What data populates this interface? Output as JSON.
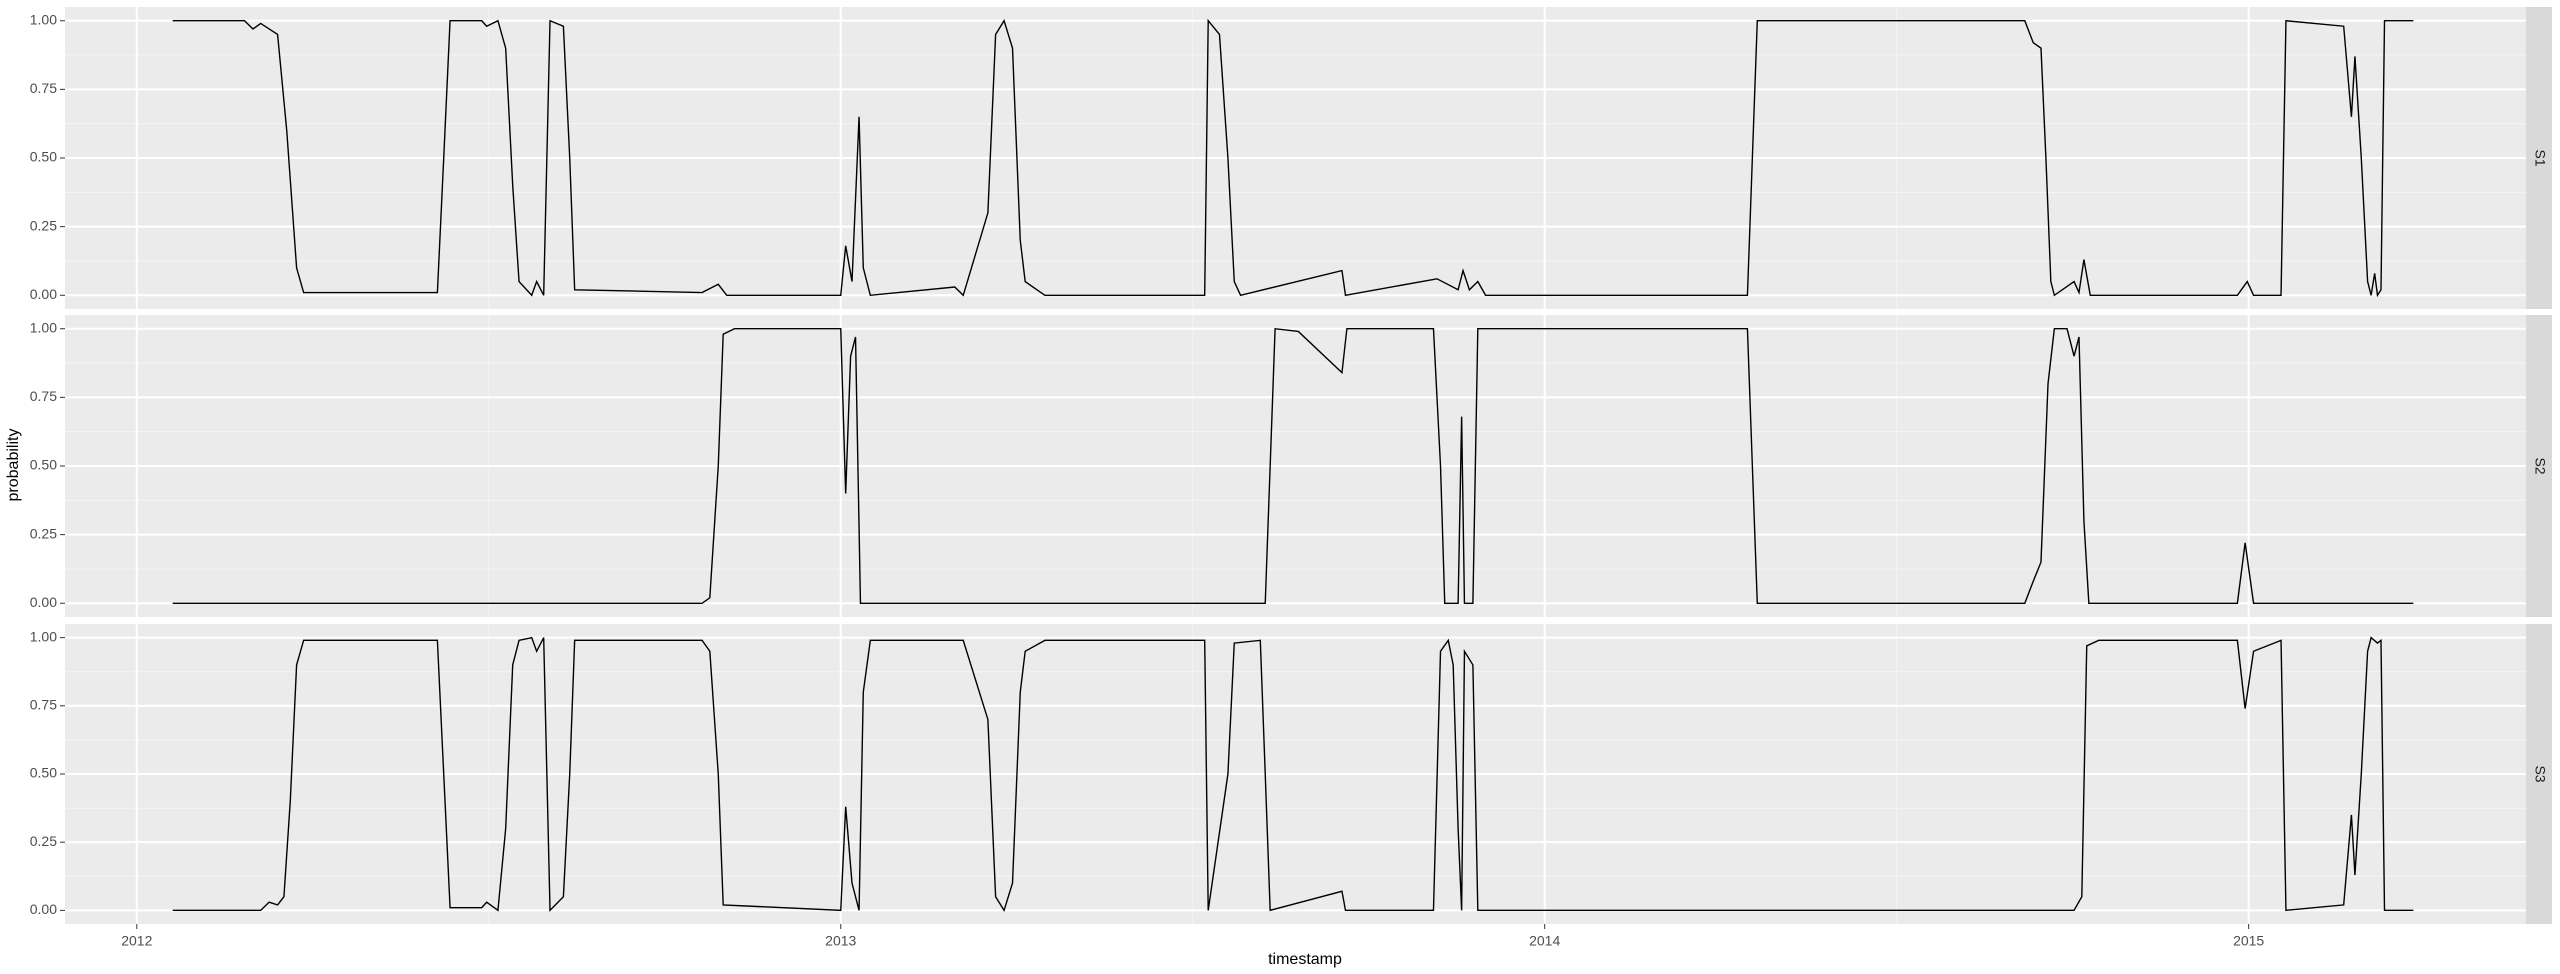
{
  "chart_data": {
    "type": "line",
    "xlabel": "timestamp",
    "ylabel": "probability",
    "xlim": [
      2011.898,
      2015.394
    ],
    "xticks": [
      2012,
      2013,
      2014,
      2015
    ],
    "ylim": [
      -0.05,
      1.05
    ],
    "yticks": [
      {
        "value": 0,
        "label": "0.00"
      },
      {
        "value": 0.25,
        "label": "0.25"
      },
      {
        "value": 0.5,
        "label": "0.50"
      },
      {
        "value": 0.75,
        "label": "0.75"
      },
      {
        "value": 1,
        "label": "1.00"
      }
    ],
    "grid": true,
    "series": [
      {
        "name": "S1",
        "color": "#000000",
        "x": [
          2012.051,
          2012.153,
          2012.165,
          2012.176,
          2012.188,
          2012.2,
          2012.213,
          2012.227,
          2012.237,
          2012.427,
          2012.436,
          2012.445,
          2012.49,
          2012.497,
          2012.513,
          2012.524,
          2012.534,
          2012.543,
          2012.561,
          2012.568,
          2012.578,
          2012.587,
          2012.606,
          2012.615,
          2012.622,
          2012.803,
          2012.826,
          2012.838,
          2013.0,
          2013.007,
          2013.016,
          2013.026,
          2013.032,
          2013.042,
          2013.162,
          2013.174,
          2013.209,
          2013.22,
          2013.232,
          2013.244,
          2013.255,
          2013.262,
          2013.29,
          2013.517,
          2013.522,
          2013.538,
          2013.55,
          2013.559,
          2013.568,
          2013.712,
          2013.717,
          2013.847,
          2013.877,
          2013.884,
          2013.893,
          2013.905,
          2013.916,
          2014.288,
          2014.295,
          2014.302,
          2014.682,
          2014.694,
          2014.705,
          2014.712,
          2014.719,
          2014.724,
          2014.752,
          2014.759,
          2014.766,
          2014.775,
          2014.984,
          2014.998,
          2015.007,
          2015.046,
          2015.053,
          2015.135,
          2015.146,
          2015.151,
          2015.16,
          2015.169,
          2015.174,
          2015.179,
          2015.183,
          2015.188,
          2015.193,
          2015.234
        ],
        "values": [
          1,
          1,
          0.97,
          0.99,
          0.97,
          0.95,
          0.6,
          0.1,
          0.01,
          0.01,
          0.5,
          1,
          1,
          0.98,
          1,
          0.9,
          0.4,
          0.05,
          0,
          0.05,
          0,
          1,
          0.98,
          0.5,
          0.02,
          0.01,
          0.04,
          0,
          0,
          0.18,
          0.05,
          0.65,
          0.1,
          0,
          0.03,
          0,
          0.3,
          0.95,
          1,
          0.9,
          0.2,
          0.05,
          0,
          0,
          1,
          0.95,
          0.5,
          0.05,
          0,
          0.09,
          0,
          0.06,
          0.02,
          0.09,
          0.02,
          0.05,
          0,
          0,
          0.5,
          1,
          1,
          0.92,
          0.9,
          0.5,
          0.05,
          0,
          0.05,
          0.01,
          0.13,
          0,
          0,
          0.05,
          0,
          0,
          1,
          0.98,
          0.65,
          0.87,
          0.5,
          0.05,
          0,
          0.08,
          0,
          0.02,
          1,
          1
        ]
      },
      {
        "name": "S2",
        "color": "#000000",
        "x": [
          2012.051,
          2012.803,
          2012.814,
          2012.826,
          2012.833,
          2012.849,
          2013.0,
          2013.007,
          2013.014,
          2013.021,
          2013.028,
          2013.603,
          2013.61,
          2013.617,
          2013.65,
          2013.712,
          2013.719,
          2013.842,
          2013.852,
          2013.858,
          2013.877,
          2013.882,
          2013.886,
          2013.898,
          2013.905,
          2014.288,
          2014.295,
          2014.302,
          2014.682,
          2014.694,
          2014.705,
          2014.715,
          2014.724,
          2014.742,
          2014.752,
          2014.759,
          2014.766,
          2014.773,
          2014.984,
          2014.995,
          2015.007,
          2015.234
        ],
        "values": [
          0,
          0,
          0.02,
          0.5,
          0.98,
          1,
          1,
          0.4,
          0.9,
          0.97,
          0,
          0,
          0.5,
          1,
          0.99,
          0.84,
          1,
          1,
          0.5,
          0,
          0,
          0.68,
          0,
          0,
          1,
          1,
          0.5,
          0,
          0,
          0.08,
          0.15,
          0.8,
          1,
          1,
          0.9,
          0.97,
          0.3,
          0,
          0,
          0.22,
          0,
          0
        ]
      },
      {
        "name": "S3",
        "color": "#000000",
        "x": [
          2012.051,
          2012.176,
          2012.188,
          2012.2,
          2012.209,
          2012.218,
          2012.227,
          2012.237,
          2012.427,
          2012.436,
          2012.445,
          2012.49,
          2012.497,
          2012.513,
          2012.524,
          2012.534,
          2012.543,
          2012.561,
          2012.568,
          2012.578,
          2012.587,
          2012.606,
          2012.615,
          2012.622,
          2012.803,
          2012.814,
          2012.826,
          2012.833,
          2013.0,
          2013.007,
          2013.016,
          2013.026,
          2013.032,
          2013.042,
          2013.174,
          2013.209,
          2013.22,
          2013.232,
          2013.244,
          2013.255,
          2013.262,
          2013.29,
          2013.517,
          2013.522,
          2013.55,
          2013.559,
          2013.596,
          2013.603,
          2013.61,
          2013.712,
          2013.717,
          2013.842,
          2013.852,
          2013.863,
          2013.87,
          2013.877,
          2013.882,
          2013.886,
          2013.898,
          2013.905,
          2014.752,
          2014.763,
          2014.77,
          2014.787,
          2014.984,
          2014.995,
          2015.007,
          2015.046,
          2015.053,
          2015.135,
          2015.146,
          2015.151,
          2015.16,
          2015.169,
          2015.174,
          2015.183,
          2015.188,
          2015.193,
          2015.234
        ],
        "values": [
          0,
          0,
          0.03,
          0.02,
          0.05,
          0.4,
          0.9,
          0.99,
          0.99,
          0.5,
          0.01,
          0.01,
          0.03,
          0,
          0.3,
          0.9,
          0.99,
          1,
          0.95,
          1,
          0,
          0.05,
          0.5,
          0.99,
          0.99,
          0.95,
          0.5,
          0.02,
          0,
          0.38,
          0.1,
          0,
          0.8,
          0.99,
          0.99,
          0.7,
          0.05,
          0,
          0.1,
          0.8,
          0.95,
          0.99,
          0.99,
          0,
          0.5,
          0.98,
          0.99,
          0.5,
          0,
          0.07,
          0,
          0,
          0.95,
          0.99,
          0.9,
          0.3,
          0,
          0.95,
          0.9,
          0,
          0,
          0.05,
          0.97,
          0.99,
          0.99,
          0.74,
          0.95,
          0.99,
          0,
          0.02,
          0.35,
          0.13,
          0.5,
          0.95,
          1,
          0.98,
          0.99,
          0,
          0
        ]
      }
    ]
  }
}
